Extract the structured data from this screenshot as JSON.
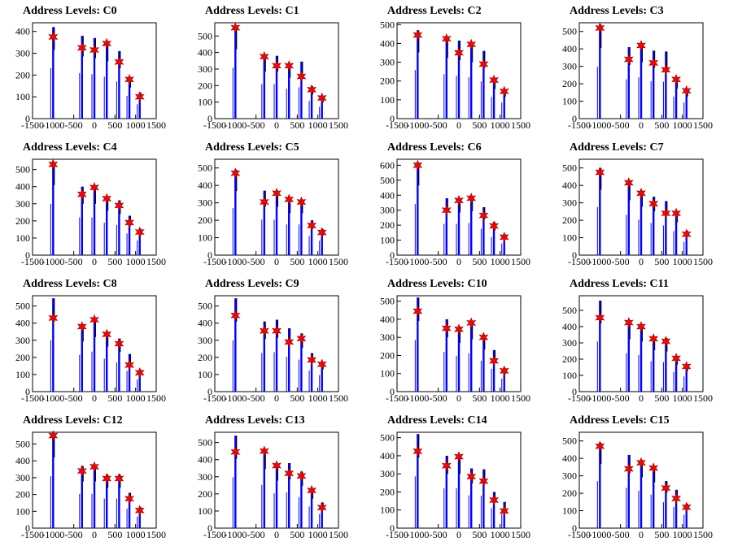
{
  "colors": {
    "histogram": "#0000ff",
    "marker": "#ff0000",
    "marker_stroke": "#8b0000",
    "axis": "#000000",
    "background": "#ffffff"
  },
  "chart_data": [
    {
      "type": "bar",
      "title": "Address Levels: C0",
      "xlim": [
        -1500,
        1500
      ],
      "ylim": [
        0,
        440
      ],
      "yticks": [
        100,
        200,
        300,
        400
      ],
      "xticks": [
        -1500,
        -1000,
        -500,
        0,
        500,
        1000,
        1500
      ],
      "xtick_labels": [
        "-1500",
        "-1000",
        "-500",
        "0",
        "500",
        "1000",
        "1500"
      ],
      "markers": {
        "x": [
          -1000,
          -300,
          0,
          300,
          600,
          850,
          1100
        ],
        "y": [
          375,
          325,
          315,
          345,
          260,
          180,
          100
        ]
      },
      "bars": {
        "x": [
          -1000,
          -300,
          0,
          300,
          600,
          850,
          1100
        ],
        "y": [
          420,
          380,
          370,
          350,
          310,
          190,
          120
        ]
      }
    },
    {
      "type": "bar",
      "title": "Address Levels: C1",
      "xlim": [
        -1500,
        1500
      ],
      "ylim": [
        0,
        580
      ],
      "yticks": [
        100,
        200,
        300,
        400,
        500
      ],
      "xticks": [
        -1500,
        -1000,
        -500,
        0,
        500,
        1000,
        1500
      ],
      "xtick_labels": [
        "-1500",
        "-1000",
        "-500",
        "0",
        "500",
        "1000",
        "1500"
      ],
      "markers": {
        "x": [
          -1000,
          -300,
          0,
          300,
          600,
          850,
          1100
        ],
        "y": [
          550,
          375,
          320,
          320,
          255,
          175,
          125
        ]
      },
      "bars": {
        "x": [
          -1000,
          -300,
          0,
          300,
          600,
          850,
          1100
        ],
        "y": [
          560,
          380,
          380,
          330,
          345,
          195,
          130
        ]
      }
    },
    {
      "type": "bar",
      "title": "Address Levels: C2",
      "xlim": [
        -1500,
        1500
      ],
      "ylim": [
        0,
        510
      ],
      "yticks": [
        100,
        200,
        300,
        400,
        500
      ],
      "xticks": [
        -1500,
        -1000,
        -500,
        0,
        500,
        1000,
        1500
      ],
      "xtick_labels": [
        "-1500",
        "-1000",
        "-500",
        "0",
        "500",
        "1000",
        "1500"
      ],
      "markers": {
        "x": [
          -1000,
          -300,
          0,
          300,
          600,
          850,
          1100
        ],
        "y": [
          445,
          425,
          350,
          395,
          290,
          205,
          145
        ]
      },
      "bars": {
        "x": [
          -1000,
          -300,
          0,
          300,
          600,
          850,
          1100
        ],
        "y": [
          470,
          430,
          415,
          400,
          360,
          210,
          155
        ]
      }
    },
    {
      "type": "bar",
      "title": "Address Levels: C3",
      "xlim": [
        -1500,
        1500
      ],
      "ylim": [
        0,
        550
      ],
      "yticks": [
        100,
        200,
        300,
        400,
        500
      ],
      "xticks": [
        -1500,
        -1000,
        -500,
        0,
        500,
        1000,
        1500
      ],
      "xtick_labels": [
        "-1500",
        "-1000",
        "-500",
        "0",
        "500",
        "1000",
        "1500"
      ],
      "markers": {
        "x": [
          -1000,
          -300,
          0,
          300,
          600,
          850,
          1100
        ],
        "y": [
          520,
          340,
          420,
          320,
          280,
          225,
          160
        ]
      },
      "bars": {
        "x": [
          -1000,
          -300,
          0,
          300,
          600,
          850,
          1100
        ],
        "y": [
          540,
          410,
          430,
          390,
          385,
          230,
          170
        ]
      }
    },
    {
      "type": "bar",
      "title": "Address Levels: C4",
      "xlim": [
        -1500,
        1500
      ],
      "ylim": [
        0,
        560
      ],
      "yticks": [
        100,
        200,
        300,
        400,
        500
      ],
      "xticks": [
        -1500,
        -1000,
        -500,
        0,
        500,
        1000,
        1500
      ],
      "xtick_labels": [
        "-1500",
        "-1000",
        "-500",
        "0",
        "500",
        "1000",
        "1500"
      ],
      "markers": {
        "x": [
          -1000,
          -300,
          0,
          300,
          600,
          850,
          1100
        ],
        "y": [
          530,
          355,
          395,
          330,
          290,
          190,
          135
        ]
      },
      "bars": {
        "x": [
          -1000,
          -300,
          0,
          300,
          600,
          850,
          1100
        ],
        "y": [
          545,
          400,
          400,
          345,
          320,
          230,
          155
        ]
      }
    },
    {
      "type": "bar",
      "title": "Address Levels: C5",
      "xlim": [
        -1500,
        1500
      ],
      "ylim": [
        0,
        550
      ],
      "yticks": [
        100,
        200,
        300,
        400,
        500
      ],
      "xticks": [
        -1500,
        -1000,
        -500,
        0,
        500,
        1000,
        1500
      ],
      "xtick_labels": [
        "-1500",
        "-1000",
        "-500",
        "0",
        "500",
        "1000",
        "1500"
      ],
      "markers": {
        "x": [
          -1000,
          -300,
          0,
          300,
          600,
          850,
          1100
        ],
        "y": [
          470,
          305,
          355,
          320,
          305,
          170,
          130
        ]
      },
      "bars": {
        "x": [
          -1000,
          -300,
          0,
          300,
          600,
          850,
          1100
        ],
        "y": [
          490,
          370,
          370,
          320,
          320,
          200,
          150
        ]
      }
    },
    {
      "type": "bar",
      "title": "Address Levels: C6",
      "xlim": [
        -1500,
        1500
      ],
      "ylim": [
        0,
        640
      ],
      "yticks": [
        100,
        200,
        300,
        400,
        500,
        600
      ],
      "xticks": [
        -1500,
        -1000,
        -500,
        0,
        500,
        1000,
        1500
      ],
      "xtick_labels": [
        "-1500",
        "-1000",
        "-500",
        "0",
        "500",
        "1000",
        "1500"
      ],
      "markers": {
        "x": [
          -1000,
          -300,
          0,
          300,
          600,
          850,
          1100
        ],
        "y": [
          600,
          300,
          365,
          380,
          265,
          195,
          120
        ]
      },
      "bars": {
        "x": [
          -1000,
          -300,
          0,
          300,
          600,
          850,
          1100
        ],
        "y": [
          620,
          380,
          380,
          390,
          320,
          220,
          140
        ]
      }
    },
    {
      "type": "bar",
      "title": "Address Levels: C7",
      "xlim": [
        -1500,
        1500
      ],
      "ylim": [
        0,
        550
      ],
      "yticks": [
        100,
        200,
        300,
        400,
        500
      ],
      "xticks": [
        -1500,
        -1000,
        -500,
        0,
        500,
        1000,
        1500
      ],
      "xtick_labels": [
        "-1500",
        "-1000",
        "-500",
        "0",
        "500",
        "1000",
        "1500"
      ],
      "markers": {
        "x": [
          -1000,
          -300,
          0,
          300,
          600,
          850,
          1100
        ],
        "y": [
          475,
          415,
          355,
          295,
          240,
          240,
          120
        ]
      },
      "bars": {
        "x": [
          -1000,
          -300,
          0,
          300,
          600,
          850,
          1100
        ],
        "y": [
          500,
          420,
          370,
          335,
          310,
          250,
          140
        ]
      }
    },
    {
      "type": "bar",
      "title": "Address Levels: C8",
      "xlim": [
        -1500,
        1500
      ],
      "ylim": [
        0,
        560
      ],
      "yticks": [
        100,
        200,
        300,
        400,
        500
      ],
      "xticks": [
        -1500,
        -1000,
        -500,
        0,
        500,
        1000,
        1500
      ],
      "xtick_labels": [
        "-1500",
        "-1000",
        "-500",
        "0",
        "500",
        "1000",
        "1500"
      ],
      "markers": {
        "x": [
          -1000,
          -300,
          0,
          300,
          600,
          850,
          1100
        ],
        "y": [
          430,
          380,
          420,
          335,
          280,
          155,
          110
        ]
      },
      "bars": {
        "x": [
          -1000,
          -300,
          0,
          300,
          600,
          850,
          1100
        ],
        "y": [
          545,
          390,
          425,
          350,
          310,
          220,
          130
        ]
      }
    },
    {
      "type": "bar",
      "title": "Address Levels: C9",
      "xlim": [
        -1500,
        1500
      ],
      "ylim": [
        0,
        560
      ],
      "yticks": [
        100,
        200,
        300,
        400,
        500
      ],
      "xticks": [
        -1500,
        -1000,
        -500,
        0,
        500,
        1000,
        1500
      ],
      "xtick_labels": [
        "-1500",
        "-1000",
        "-500",
        "0",
        "500",
        "1000",
        "1500"
      ],
      "markers": {
        "x": [
          -1000,
          -300,
          0,
          300,
          600,
          850,
          1100
        ],
        "y": [
          445,
          355,
          355,
          290,
          310,
          185,
          160
        ]
      },
      "bars": {
        "x": [
          -1000,
          -300,
          0,
          300,
          600,
          850,
          1100
        ],
        "y": [
          545,
          410,
          420,
          370,
          340,
          225,
          175
        ]
      }
    },
    {
      "type": "bar",
      "title": "Address Levels: C10",
      "xlim": [
        -1500,
        1500
      ],
      "ylim": [
        0,
        530
      ],
      "yticks": [
        100,
        200,
        300,
        400,
        500
      ],
      "xticks": [
        -1500,
        -1000,
        -500,
        0,
        500,
        1000,
        1500
      ],
      "xtick_labels": [
        "-1500",
        "-1000",
        "-500",
        "0",
        "500",
        "1000",
        "1500"
      ],
      "markers": {
        "x": [
          -1000,
          -300,
          0,
          300,
          600,
          850,
          1100
        ],
        "y": [
          445,
          350,
          345,
          380,
          300,
          170,
          115
        ]
      },
      "bars": {
        "x": [
          -1000,
          -300,
          0,
          300,
          600,
          850,
          1100
        ],
        "y": [
          520,
          400,
          360,
          385,
          310,
          230,
          130
        ]
      }
    },
    {
      "type": "bar",
      "title": "Address Levels: C11",
      "xlim": [
        -1500,
        1500
      ],
      "ylim": [
        0,
        590
      ],
      "yticks": [
        100,
        200,
        300,
        400,
        500
      ],
      "xticks": [
        -1500,
        -1000,
        -500,
        0,
        500,
        1000,
        1500
      ],
      "xtick_labels": [
        "-1500",
        "-1000",
        "-500",
        "0",
        "500",
        "1000",
        "1500"
      ],
      "markers": {
        "x": [
          -1000,
          -300,
          0,
          300,
          600,
          850,
          1100
        ],
        "y": [
          455,
          425,
          400,
          325,
          310,
          205,
          155
        ]
      },
      "bars": {
        "x": [
          -1000,
          -300,
          0,
          300,
          600,
          850,
          1100
        ],
        "y": [
          560,
          430,
          410,
          340,
          330,
          220,
          170
        ]
      }
    },
    {
      "type": "bar",
      "title": "Address Levels: C12",
      "xlim": [
        -1500,
        1500
      ],
      "ylim": [
        0,
        570
      ],
      "yticks": [
        100,
        200,
        300,
        400,
        500
      ],
      "xticks": [
        -1500,
        -1000,
        -500,
        0,
        500,
        1000,
        1500
      ],
      "xtick_labels": [
        "-1500",
        "-1000",
        "-500",
        "0",
        "500",
        "1000",
        "1500"
      ],
      "markers": {
        "x": [
          -1000,
          -300,
          0,
          300,
          600,
          850,
          1100
        ],
        "y": [
          550,
          340,
          365,
          295,
          295,
          175,
          105
        ]
      },
      "bars": {
        "x": [
          -1000,
          -300,
          0,
          300,
          600,
          850,
          1100
        ],
        "y": [
          560,
          370,
          370,
          320,
          320,
          210,
          125
        ]
      }
    },
    {
      "type": "bar",
      "title": "Address Levels: C13",
      "xlim": [
        -1500,
        1500
      ],
      "ylim": [
        0,
        560
      ],
      "yticks": [
        100,
        200,
        300,
        400,
        500
      ],
      "xticks": [
        -1500,
        -1000,
        -500,
        0,
        500,
        1000,
        1500
      ],
      "xtick_labels": [
        "-1500",
        "-1000",
        "-500",
        "0",
        "500",
        "1000",
        "1500"
      ],
      "markers": {
        "x": [
          -1000,
          -300,
          0,
          300,
          600,
          850,
          1100
        ],
        "y": [
          445,
          450,
          365,
          320,
          305,
          220,
          120
        ]
      },
      "bars": {
        "x": [
          -1000,
          -300,
          0,
          300,
          600,
          850,
          1100
        ],
        "y": [
          540,
          460,
          370,
          380,
          330,
          230,
          150
        ]
      }
    },
    {
      "type": "bar",
      "title": "Address Levels: C14",
      "xlim": [
        -1500,
        1500
      ],
      "ylim": [
        0,
        530
      ],
      "yticks": [
        100,
        200,
        300,
        400,
        500
      ],
      "xticks": [
        -1500,
        -1000,
        -500,
        0,
        500,
        1000,
        1500
      ],
      "xtick_labels": [
        "-1500",
        "-1000",
        "-500",
        "0",
        "500",
        "1000",
        "1500"
      ],
      "markers": {
        "x": [
          -1000,
          -300,
          0,
          300,
          600,
          850,
          1100
        ],
        "y": [
          425,
          345,
          395,
          285,
          260,
          155,
          95
        ]
      },
      "bars": {
        "x": [
          -1000,
          -300,
          0,
          300,
          600,
          850,
          1100
        ],
        "y": [
          520,
          400,
          400,
          330,
          325,
          200,
          145
        ]
      }
    },
    {
      "type": "bar",
      "title": "Address Levels: C15",
      "xlim": [
        -1500,
        1500
      ],
      "ylim": [
        0,
        550
      ],
      "yticks": [
        100,
        200,
        300,
        400,
        500
      ],
      "xticks": [
        -1500,
        -1000,
        -500,
        0,
        500,
        1000,
        1500
      ],
      "xtick_labels": [
        "-1500",
        "-1000",
        "-500",
        "0",
        "500",
        "1000",
        "1500"
      ],
      "markers": {
        "x": [
          -1000,
          -300,
          0,
          300,
          600,
          850,
          1100
        ],
        "y": [
          470,
          340,
          375,
          345,
          230,
          170,
          120
        ]
      },
      "bars": {
        "x": [
          -1000,
          -300,
          0,
          300,
          600,
          850,
          1100
        ],
        "y": [
          490,
          420,
          390,
          350,
          270,
          220,
          140
        ]
      }
    }
  ]
}
